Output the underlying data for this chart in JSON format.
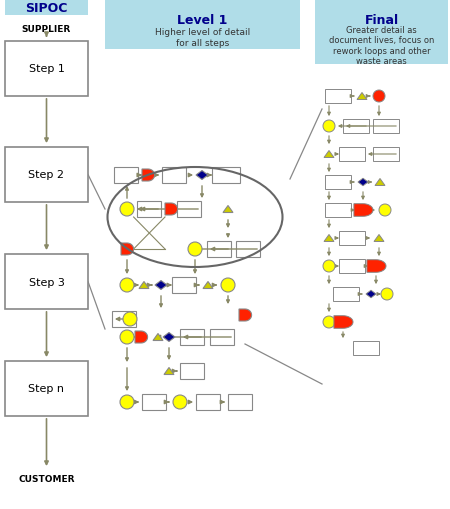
{
  "title_sipoc": "SIPOC",
  "title_level1": "Level 1",
  "subtitle_level1": "Higher level of detail\nfor all steps",
  "title_final": "Final",
  "subtitle_final": "Greater detail as\ndocument lives, focus on\nrework loops and other\nwaste areas",
  "supplier_text": "SUPPLIER",
  "customer_text": "CUSTOMER",
  "steps": [
    "Step 1",
    "Step 2",
    "Step 3",
    "Step n"
  ],
  "bg_color": "#ffffff",
  "header_bg": "#b0dde8",
  "yellow": "#ffff00",
  "red": "#ff2200",
  "navy": "#00008b",
  "arrow_color": "#888866",
  "box_ec": "#888888",
  "tri_yellow": "#cccc00"
}
